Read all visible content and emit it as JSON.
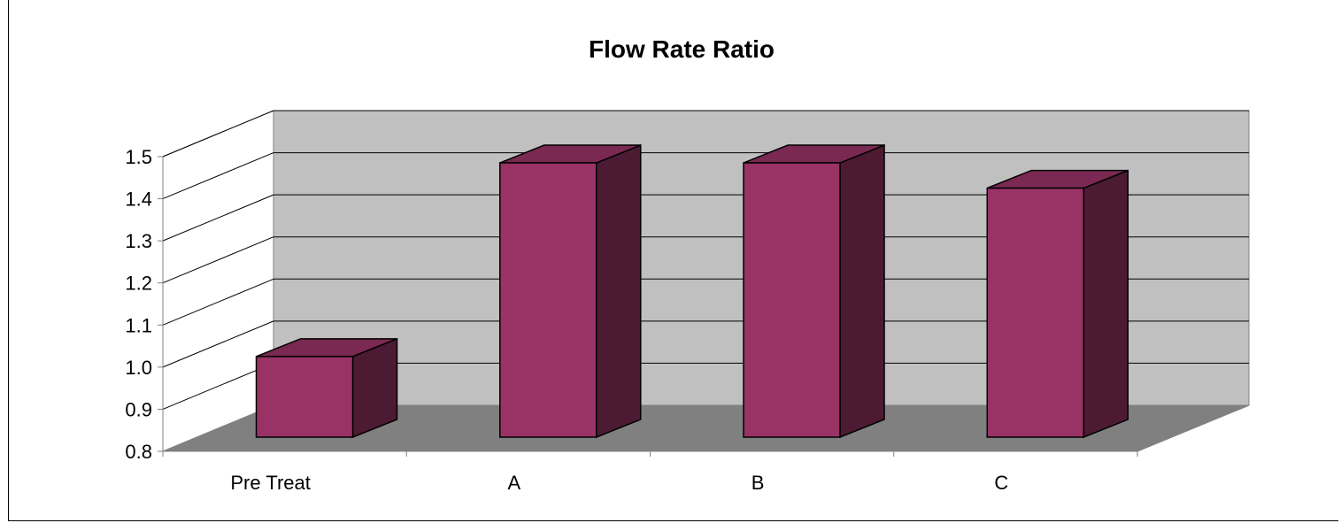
{
  "chart_data": {
    "type": "bar",
    "title": "Flow Rate Ratio",
    "xlabel": "",
    "ylabel": "",
    "categories": [
      "Pre Treat",
      "A",
      "B",
      "C"
    ],
    "values": [
      1.0,
      1.46,
      1.46,
      1.4
    ],
    "ylim": [
      0.8,
      1.5
    ],
    "yticks": [
      "0.8",
      "0.9",
      "1.0",
      "1.1",
      "1.2",
      "1.3",
      "1.4",
      "1.5"
    ],
    "grid": true,
    "legend": "none",
    "style": "3d-column",
    "colors": {
      "bar_front": "#993366",
      "bar_side": "#4d1a33",
      "bar_top": "#7a2952",
      "back_wall": "#c0c0c0",
      "side_wall": "#ffffff",
      "floor": "#808080"
    }
  }
}
